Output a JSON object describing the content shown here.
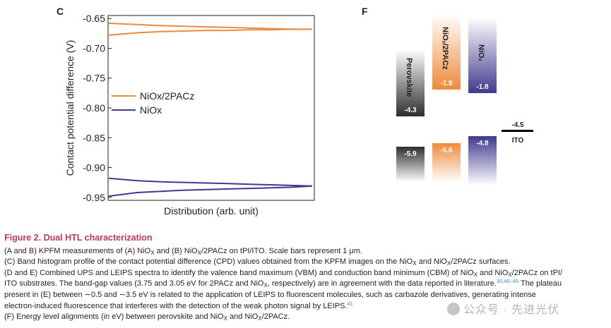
{
  "panel_c": {
    "letter": "C",
    "chart_data": {
      "type": "line",
      "xlabel": "Distribution (arb. unit)",
      "ylabel": "Contact potential difference (V)",
      "ylim": [
        -0.955,
        -0.645
      ],
      "yticks": [
        "-0.65",
        "-0.70",
        "-0.75",
        "-0.80",
        "-0.85",
        "-0.90",
        "-0.95"
      ],
      "ytick_values": [
        -0.65,
        -0.7,
        -0.75,
        -0.8,
        -0.85,
        -0.9,
        -0.95
      ],
      "legend": "upper-left",
      "series": [
        {
          "name": "NiOx/2PAC\u0007z",
          "color": "#ee8a3a",
          "upper": [
            -0.658,
            -0.66,
            -0.662,
            -0.663,
            -0.664,
            -0.665,
            -0.666,
            -0.667,
            -0.668,
            -0.668
          ],
          "lower": [
            -0.678,
            -0.674,
            -0.672,
            -0.671,
            -0.67,
            -0.67,
            -0.669,
            -0.669,
            -0.668,
            -0.668
          ]
        },
        {
          "name": "NiOx",
          "color": "#3f3a8f",
          "upper": [
            -0.918,
            -0.922,
            -0.924,
            -0.925,
            -0.926,
            -0.927,
            -0.928,
            -0.929,
            -0.93,
            -0.931
          ],
          "lower": [
            -0.948,
            -0.942,
            -0.94,
            -0.938,
            -0.937,
            -0.936,
            -0.935,
            -0.934,
            -0.933,
            -0.931
          ]
        }
      ]
    }
  },
  "panel_f": {
    "letter": "F",
    "chart_data": {
      "type": "bar",
      "categories": [
        "Perovskite",
        "NiOₓ/2PACz",
        "NiOₓ",
        "ITO"
      ],
      "cb": [
        "-4.3",
        "-1.9",
        "-1.8",
        "-4.5"
      ],
      "vb": [
        "-5.9",
        "-5.6",
        "-4.8"
      ],
      "colors": [
        "#3a3a3a",
        "#ee8a3a",
        "#3f3a8f",
        "#000000"
      ]
    }
  },
  "caption": {
    "title": "Figure 2. Dual HTL characterization",
    "l1a": "(A and B) KPFM measurements of (A) NiO",
    "l1b": " and (B) NiO",
    "l1c": "/2PACz on tPI/ITO. Scale bars represent 1 μm.",
    "l2a": "(C) Band histogram profile of the contact potential difference (CPD) values obtained from the KPFM images on the NiO",
    "l2b": " and NiO",
    "l2c": "/2PACz surfaces.",
    "l3a": "(D and E) Combined UPS and LEIPS spectra to identify the valence band maximum (VBM) and conduction band minimum (CBM) of NiO",
    "l3b": " and NiO",
    "l3c": "/2PACz on tPI/",
    "l4a": "ITO substrates. The band-gap values (3.75 and 3.05 eV for 2PACz and NiO",
    "l4b": ", respectively) are in agreement with the data reported in literature.",
    "l4ref": "30,40–45",
    "l4c": " The plateau",
    "l5": "present in (E) between ∼0.5 and ∼3.5 eV is related to the application of LEIPS to fluorescent molecules, such as carbazole derivatives, generating intense",
    "l6a": "electron-induced fluorescence that interferes with the detection of the weak photon signal by LEIPS.",
    "l6ref": "41",
    "l7a": "(F) Energy level alignments (in eV) between perovskite and NiO",
    "l7b": " and NiO",
    "l7c": "/2PACz.",
    "sub_x": "X"
  },
  "watermark": {
    "text": "公众号 · 先进光伏"
  }
}
